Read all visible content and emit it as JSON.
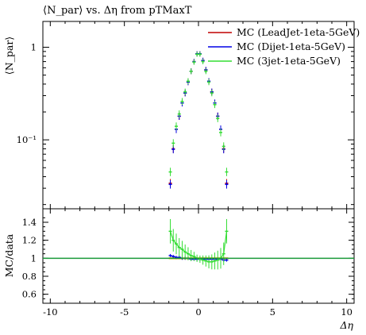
{
  "header": {
    "title": "⟨N_par⟩ vs. Δη from pTMaxT"
  },
  "chart_data": [
    {
      "type": "line",
      "panel": "main",
      "title": "⟨N_par⟩ vs. Δη from pTMaxT",
      "ylabel": "⟨N_par⟩",
      "xlabel": "",
      "xlim": [
        -10.5,
        10.5
      ],
      "ylim": [
        0.018,
        1.9
      ],
      "yscale": "log",
      "yticks": [
        {
          "value": 0.1,
          "label": "10⁻¹"
        },
        {
          "value": 1,
          "label": "1"
        }
      ],
      "legend_position": "top-right",
      "series": [
        {
          "name": "MC (LeadJet-1eta-5GeV)",
          "color": "#c00000",
          "x": [
            -1.9,
            -1.7,
            -1.5,
            -1.3,
            -1.1,
            -0.9,
            -0.7,
            -0.5,
            -0.3,
            -0.1,
            0.1,
            0.3,
            0.5,
            0.7,
            0.9,
            1.1,
            1.3,
            1.5,
            1.7,
            1.9
          ],
          "y": [
            0.034,
            0.08,
            0.13,
            0.18,
            0.25,
            0.32,
            0.42,
            0.55,
            0.7,
            0.85,
            0.85,
            0.72,
            0.57,
            0.43,
            0.33,
            0.25,
            0.18,
            0.13,
            0.08,
            0.034
          ]
        },
        {
          "name": "MC (Dijet-1eta-5GeV)",
          "color": "#0000e6",
          "x": [
            -1.9,
            -1.7,
            -1.5,
            -1.3,
            -1.1,
            -0.9,
            -0.7,
            -0.5,
            -0.3,
            -0.1,
            0.1,
            0.3,
            0.5,
            0.7,
            0.9,
            1.1,
            1.3,
            1.5,
            1.7,
            1.9
          ],
          "y": [
            0.033,
            0.079,
            0.13,
            0.18,
            0.25,
            0.32,
            0.42,
            0.55,
            0.7,
            0.85,
            0.85,
            0.72,
            0.57,
            0.43,
            0.33,
            0.25,
            0.18,
            0.13,
            0.079,
            0.033
          ]
        },
        {
          "name": "MC (3jet-1eta-5GeV)",
          "color": "#33dd33",
          "x": [
            -1.9,
            -1.7,
            -1.5,
            -1.3,
            -1.1,
            -0.9,
            -0.7,
            -0.5,
            -0.3,
            -0.1,
            0.1,
            0.3,
            0.5,
            0.7,
            0.9,
            1.1,
            1.3,
            1.5,
            1.7,
            1.9
          ],
          "y": [
            0.045,
            0.092,
            0.14,
            0.19,
            0.26,
            0.33,
            0.43,
            0.55,
            0.69,
            0.84,
            0.84,
            0.7,
            0.55,
            0.42,
            0.32,
            0.24,
            0.17,
            0.12,
            0.085,
            0.045
          ]
        }
      ]
    },
    {
      "type": "line",
      "panel": "ratio",
      "ylabel": "MC/data",
      "xlabel": "Δη",
      "xlim": [
        -10.5,
        10.5
      ],
      "ylim": [
        0.5,
        1.55
      ],
      "xticks": [
        -10,
        -5,
        0,
        5,
        10
      ],
      "yticks": [
        0.6,
        0.8,
        1,
        1.2,
        1.4
      ],
      "reference_line": 1,
      "series": [
        {
          "name": "MC (LeadJet-1eta-5GeV)",
          "color": "#c00000",
          "x": [
            -1.9,
            -1.7,
            -1.5,
            -1.3,
            -1.1,
            -0.9,
            -0.7,
            -0.5,
            -0.3,
            -0.1,
            0.1,
            0.3,
            0.5,
            0.7,
            0.9,
            1.1,
            1.3,
            1.5,
            1.7,
            1.9
          ],
          "y": [
            1,
            1,
            1,
            1,
            1,
            1,
            1,
            1,
            1,
            1,
            1,
            1,
            1,
            1,
            1,
            1,
            1,
            1,
            1,
            1
          ]
        },
        {
          "name": "MC (Dijet-1eta-5GeV)",
          "color": "#0000e6",
          "x": [
            -1.9,
            -1.7,
            -1.5,
            -1.3,
            -1.1,
            -0.9,
            -0.7,
            -0.5,
            -0.3,
            -0.1,
            0.1,
            0.3,
            0.5,
            0.7,
            0.9,
            1.1,
            1.3,
            1.5,
            1.7,
            1.9
          ],
          "y": [
            1.03,
            1.02,
            1.01,
            1.01,
            1.0,
            1.0,
            1.0,
            0.99,
            0.99,
            0.99,
            0.99,
            0.99,
            0.99,
            0.99,
            0.99,
            0.99,
            0.99,
            0.99,
            0.98,
            0.98
          ]
        },
        {
          "name": "MC (3jet-1eta-5GeV)",
          "color": "#33dd33",
          "x": [
            -1.9,
            -1.7,
            -1.5,
            -1.3,
            -1.1,
            -0.9,
            -0.7,
            -0.5,
            -0.3,
            -0.1,
            0.1,
            0.3,
            0.5,
            0.7,
            0.9,
            1.1,
            1.3,
            1.5,
            1.7,
            1.9
          ],
          "y": [
            1.3,
            1.2,
            1.16,
            1.12,
            1.1,
            1.07,
            1.05,
            1.03,
            1.02,
            1.0,
            0.99,
            0.98,
            0.97,
            0.96,
            0.96,
            0.97,
            0.98,
            1.0,
            1.05,
            1.3
          ]
        }
      ]
    }
  ]
}
